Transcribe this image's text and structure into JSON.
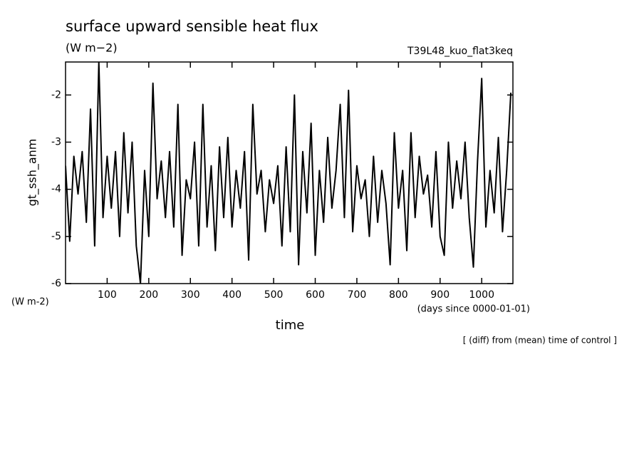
{
  "chart_data": {
    "type": "line",
    "title": "surface upward sensible heat flux",
    "subtitle": "(W m−2)",
    "experiment": "T39L48_kuo_flat3keq",
    "y_label": "gt_ssh_anm",
    "y_unit": "(W m-2)",
    "x_label": "time",
    "x_unit": "(days since 0000-01-01)",
    "note": "[ (diff) from (mean) time of control ]",
    "xlim": [
      0,
      1075
    ],
    "ylim": [
      -6,
      -1.3
    ],
    "xticks": [
      100,
      200,
      300,
      400,
      500,
      600,
      700,
      800,
      900,
      1000
    ],
    "yticks": [
      -6,
      -5,
      -4,
      -3,
      -2
    ],
    "series": [
      {
        "name": "gt_ssh_anm",
        "color": "#000000",
        "x": [
          0,
          10,
          20,
          30,
          40,
          50,
          60,
          70,
          80,
          90,
          100,
          110,
          120,
          130,
          140,
          150,
          160,
          170,
          180,
          190,
          200,
          210,
          220,
          230,
          240,
          250,
          260,
          270,
          280,
          290,
          300,
          310,
          320,
          330,
          340,
          350,
          360,
          370,
          380,
          390,
          400,
          410,
          420,
          430,
          440,
          450,
          460,
          470,
          480,
          490,
          500,
          510,
          520,
          530,
          540,
          550,
          560,
          570,
          580,
          590,
          600,
          610,
          620,
          630,
          640,
          650,
          660,
          670,
          680,
          690,
          700,
          710,
          720,
          730,
          740,
          750,
          760,
          770,
          780,
          790,
          800,
          810,
          820,
          830,
          840,
          850,
          860,
          870,
          880,
          890,
          900,
          910,
          920,
          930,
          940,
          950,
          960,
          970,
          980,
          990,
          1000,
          1010,
          1020,
          1030,
          1040,
          1050,
          1060,
          1070
        ],
        "values": [
          -3.5,
          -5.1,
          -3.3,
          -4.1,
          -3.2,
          -4.7,
          -2.3,
          -5.2,
          -1.3,
          -4.6,
          -3.3,
          -4.4,
          -3.2,
          -5.0,
          -2.8,
          -4.5,
          -3.0,
          -5.2,
          -6.0,
          -3.6,
          -5.0,
          -1.75,
          -4.2,
          -3.4,
          -4.6,
          -3.2,
          -4.8,
          -2.2,
          -5.4,
          -3.8,
          -4.2,
          -3.0,
          -5.2,
          -2.2,
          -4.8,
          -3.5,
          -5.3,
          -3.1,
          -4.6,
          -2.9,
          -4.8,
          -3.6,
          -4.4,
          -3.2,
          -5.5,
          -2.2,
          -4.1,
          -3.6,
          -4.9,
          -3.8,
          -4.3,
          -3.5,
          -5.2,
          -3.1,
          -4.9,
          -2.0,
          -5.6,
          -3.2,
          -4.5,
          -2.6,
          -5.4,
          -3.6,
          -4.7,
          -2.9,
          -4.4,
          -3.6,
          -2.2,
          -4.6,
          -1.9,
          -4.9,
          -3.5,
          -4.2,
          -3.8,
          -5.0,
          -3.3,
          -4.7,
          -3.6,
          -4.3,
          -5.6,
          -2.8,
          -4.4,
          -3.6,
          -5.3,
          -2.8,
          -4.6,
          -3.3,
          -4.1,
          -3.7,
          -4.8,
          -3.2,
          -5.0,
          -5.4,
          -3.0,
          -4.4,
          -3.4,
          -4.2,
          -3.0,
          -4.6,
          -5.65,
          -3.4,
          -1.65,
          -4.8,
          -3.6,
          -4.5,
          -2.9,
          -4.9,
          -3.6,
          -1.95
        ]
      }
    ]
  }
}
